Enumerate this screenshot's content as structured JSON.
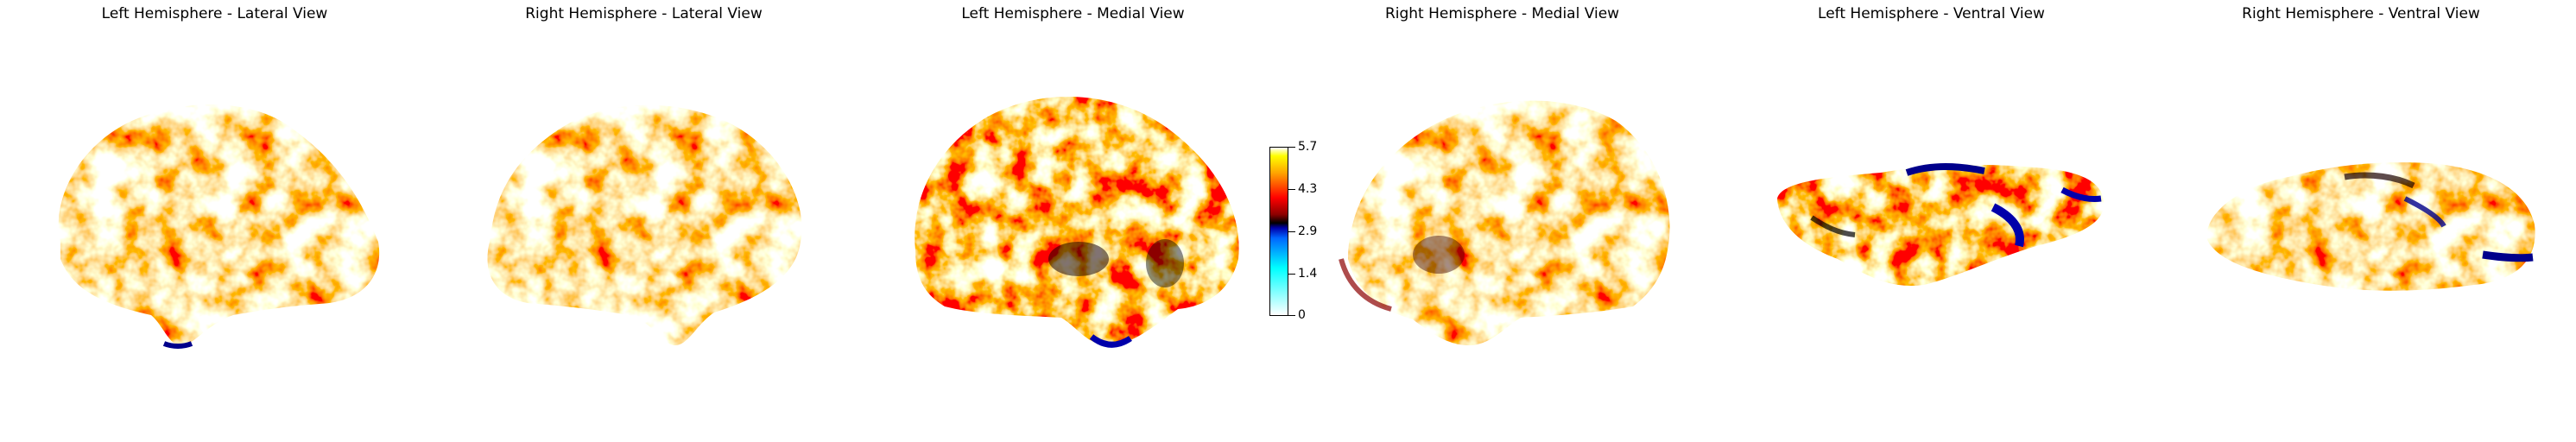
{
  "panels": [
    {
      "title": "Left Hemisphere - Lateral View"
    },
    {
      "title": "Right Hemisphere - Lateral View"
    },
    {
      "title": "Left Hemisphere - Medial View"
    },
    {
      "title": "Right Hemisphere - Medial View"
    },
    {
      "title": "Left Hemisphere - Ventral View"
    },
    {
      "title": "Right Hemisphere - Ventral View"
    }
  ],
  "colorbar": {
    "ticks": [
      "5.7",
      "4.3",
      "2.9",
      "1.4",
      "0"
    ],
    "colormap": [
      "#ffffff",
      "#00ffff",
      "#0066ff",
      "#0000aa",
      "#000000",
      "#8b0000",
      "#ff0000",
      "#ffa500",
      "#ffff00",
      "#ffffff"
    ]
  }
}
